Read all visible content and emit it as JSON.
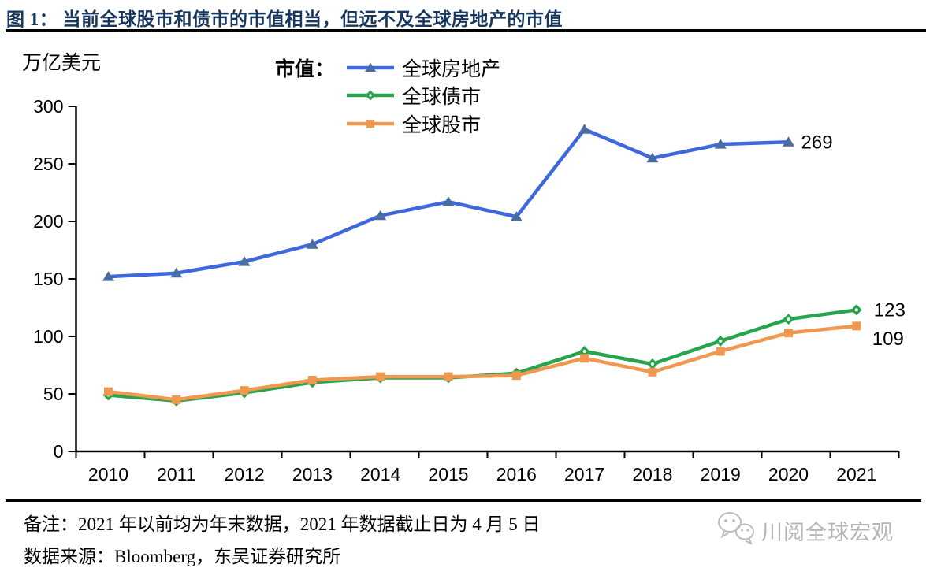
{
  "header": {
    "title": "图 1：  当前全球股市和债市的市值相当，但远不及全球房地产的市值"
  },
  "chart_data": {
    "type": "line",
    "title": "当前全球股市和债市的市值相当，但远不及全球房地产的市值",
    "unit_label": "万亿美元",
    "legend_title": "市值：",
    "legend_position": "top-center",
    "grid": false,
    "x": [
      "2010",
      "2011",
      "2012",
      "2013",
      "2014",
      "2015",
      "2016",
      "2017",
      "2018",
      "2019",
      "2020",
      "2021"
    ],
    "y_ticks": [
      0,
      50,
      100,
      150,
      200,
      250,
      300
    ],
    "ylim": [
      0,
      300
    ],
    "series": [
      {
        "name": "全球房地产",
        "marker": "triangle",
        "color": "#3E69DC",
        "marker_color": "#4A6C9E",
        "values": [
          152,
          155,
          165,
          180,
          205,
          217,
          204,
          280,
          255,
          267,
          269
        ],
        "end_label": "269",
        "end_label_dx": 16,
        "end_label_dy": 8
      },
      {
        "name": "全球债市",
        "marker": "diamond",
        "color": "#26A44E",
        "marker_color": "#26A44E",
        "values": [
          49,
          44,
          51,
          60,
          64,
          64,
          68,
          87,
          76,
          96,
          115,
          123
        ],
        "end_label": "123",
        "end_label_dx": 22,
        "end_label_dy": 8
      },
      {
        "name": "全球股市",
        "marker": "square",
        "color": "#F09850",
        "marker_color": "#F09850",
        "values": [
          52,
          45,
          53,
          62,
          65,
          65,
          66,
          81,
          69,
          87,
          103,
          109
        ],
        "end_label": "109",
        "end_label_dx": 20,
        "end_label_dy": 24
      }
    ]
  },
  "footer": {
    "note": "备注：2021 年以前均为年末数据，2021 年数据截止日为 4 月 5 日",
    "source": "数据来源：Bloomberg，东吴证券研究所",
    "watermark": "川阅全球宏观"
  }
}
